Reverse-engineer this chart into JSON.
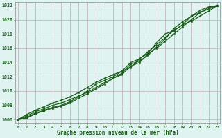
{
  "xlabel": "Graphe pression niveau de la mer (hPa)",
  "ylim": [
    1005.5,
    1022.5
  ],
  "xlim": [
    -0.3,
    23.3
  ],
  "yticks": [
    1006,
    1008,
    1010,
    1012,
    1014,
    1016,
    1018,
    1020,
    1022
  ],
  "xticks": [
    0,
    1,
    2,
    3,
    4,
    5,
    6,
    7,
    8,
    9,
    10,
    11,
    12,
    13,
    14,
    15,
    16,
    17,
    18,
    19,
    20,
    21,
    22,
    23
  ],
  "background_color": "#dff4f0",
  "grid_color": "#c0b8c0",
  "line_color": "#1a5c1a",
  "series": [
    [
      1006.0,
      1006.5,
      1007.1,
      1007.5,
      1008.0,
      1008.3,
      1008.8,
      1009.3,
      1009.8,
      1010.5,
      1011.2,
      1011.8,
      1012.3,
      1013.5,
      1014.0,
      1015.2,
      1016.0,
      1017.0,
      1018.0,
      1019.0,
      1020.0,
      1021.0,
      1021.5,
      1022.0
    ],
    [
      1006.0,
      1006.7,
      1007.3,
      1007.8,
      1008.3,
      1008.7,
      1009.2,
      1009.8,
      1010.5,
      1011.2,
      1011.8,
      1012.3,
      1012.8,
      1013.3,
      1014.5,
      1015.5,
      1016.5,
      1017.5,
      1018.5,
      1019.3,
      1019.8,
      1020.5,
      1021.2,
      1022.0
    ],
    [
      1006.0,
      1006.3,
      1006.9,
      1007.3,
      1007.7,
      1008.0,
      1008.5,
      1009.2,
      1010.0,
      1011.0,
      1011.5,
      1012.0,
      1012.8,
      1014.0,
      1014.5,
      1015.3,
      1016.8,
      1018.0,
      1018.5,
      1019.3,
      1020.5,
      1021.3,
      1021.8,
      1022.0
    ],
    [
      1006.0,
      1006.2,
      1006.8,
      1007.2,
      1007.6,
      1007.9,
      1008.3,
      1009.0,
      1009.6,
      1010.3,
      1011.0,
      1011.8,
      1012.5,
      1013.8,
      1014.2,
      1015.0,
      1016.2,
      1017.3,
      1018.8,
      1019.7,
      1020.5,
      1021.0,
      1021.7,
      1022.0
    ]
  ]
}
